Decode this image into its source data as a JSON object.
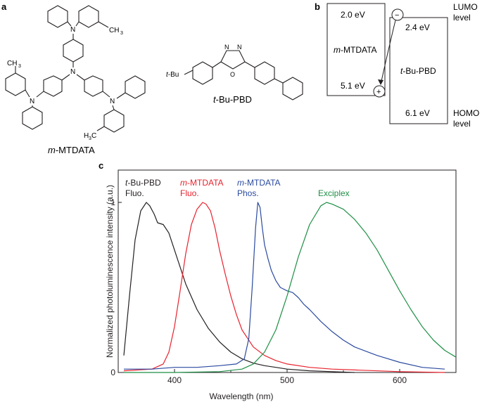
{
  "panel_a": {
    "label": "a",
    "mol1_name_ital": "m",
    "mol1_name_rest": "-MTDATA",
    "mol2_name_ital": "t",
    "mol2_name_rest": "-Bu-PBD",
    "atoms": {
      "n": "N",
      "o": "O",
      "ch3": "CH",
      "ch3_sub": "3",
      "h3c": "H",
      "h3c_sub": "3",
      "h3c_c": "C",
      "tbu": "-Bu",
      "tbu_t": "t"
    }
  },
  "panel_b": {
    "label": "b",
    "left_top": "2.0 eV",
    "left_name_ital": "m",
    "left_name_rest": "-MTDATA",
    "left_bottom": "5.1 eV",
    "right_top": "2.4 eV",
    "right_name_ital": "t",
    "right_name_rest": "-Bu-PBD",
    "right_bottom": "6.1 eV",
    "lumo_1": "LUMO",
    "lumo_2": "level",
    "homo_1": "HOMO",
    "homo_2": "level",
    "minus": "−",
    "plus": "+"
  },
  "panel_c": {
    "label": "c",
    "legend": {
      "s1_l1_ital": "t",
      "s1_l1_rest": "-Bu-PBD",
      "s1_l2": "Fluo.",
      "s2_l1_ital": "m",
      "s2_l1_rest": "-MTDATA",
      "s2_l2": "Fluo.",
      "s3_l1_ital": "m",
      "s3_l1_rest": "-MTDATA",
      "s3_l2": "Phos.",
      "s4": "Exciplex"
    }
  },
  "chart_data": {
    "type": "line",
    "xlabel": "Wavelength (nm)",
    "ylabel": "Normalized photoluminescence intensity (a.u.)",
    "xlim": [
      350,
      650
    ],
    "ylim": [
      0,
      1.2
    ],
    "xticks": [
      400,
      500,
      600
    ],
    "yticks": [
      0,
      1
    ],
    "series": [
      {
        "name": "t-Bu-PBD Fluo.",
        "color": "#231f20",
        "x": [
          355,
          360,
          365,
          370,
          375,
          378,
          382,
          385,
          390,
          395,
          400,
          410,
          420,
          430,
          440,
          450,
          460,
          470,
          480,
          490,
          500,
          520,
          540,
          560
        ],
        "y": [
          0.1,
          0.45,
          0.78,
          0.95,
          1.0,
          0.98,
          0.93,
          0.88,
          0.87,
          0.82,
          0.72,
          0.52,
          0.37,
          0.26,
          0.18,
          0.12,
          0.08,
          0.055,
          0.04,
          0.03,
          0.02,
          0.01,
          0.005,
          0.0
        ]
      },
      {
        "name": "m-MTDATA Fluo.",
        "color": "#e8222d",
        "x": [
          355,
          380,
          390,
          395,
          400,
          405,
          410,
          415,
          420,
          425,
          428,
          432,
          436,
          440,
          445,
          450,
          455,
          460,
          470,
          480,
          490,
          500,
          520,
          540,
          560,
          600,
          640
        ],
        "y": [
          0.01,
          0.02,
          0.05,
          0.12,
          0.27,
          0.48,
          0.7,
          0.87,
          0.96,
          1.0,
          0.99,
          0.95,
          0.85,
          0.72,
          0.58,
          0.45,
          0.34,
          0.25,
          0.15,
          0.1,
          0.07,
          0.05,
          0.03,
          0.02,
          0.015,
          0.005,
          0.0
        ]
      },
      {
        "name": "m-MTDATA Phos.",
        "color": "#2b4aa0",
        "x": [
          355,
          380,
          400,
          420,
          440,
          455,
          462,
          466,
          469,
          472,
          474,
          476,
          478,
          480,
          483,
          486,
          490,
          494,
          500,
          505,
          510,
          515,
          520,
          530,
          540,
          550,
          560,
          580,
          600,
          620,
          640
        ],
        "y": [
          0.02,
          0.02,
          0.03,
          0.03,
          0.04,
          0.05,
          0.08,
          0.2,
          0.5,
          0.85,
          1.0,
          0.97,
          0.85,
          0.75,
          0.67,
          0.6,
          0.54,
          0.5,
          0.48,
          0.47,
          0.44,
          0.4,
          0.37,
          0.3,
          0.24,
          0.19,
          0.15,
          0.1,
          0.06,
          0.03,
          0.02
        ]
      },
      {
        "name": "Exciplex",
        "color": "#1f8f46",
        "x": [
          355,
          400,
          440,
          460,
          470,
          480,
          490,
          500,
          510,
          520,
          530,
          535,
          540,
          550,
          560,
          570,
          580,
          590,
          600,
          610,
          620,
          630,
          640,
          650
        ],
        "y": [
          0.0,
          0.0,
          0.005,
          0.02,
          0.05,
          0.12,
          0.25,
          0.45,
          0.68,
          0.87,
          0.98,
          1.0,
          0.99,
          0.96,
          0.9,
          0.82,
          0.72,
          0.6,
          0.48,
          0.37,
          0.27,
          0.19,
          0.13,
          0.09
        ]
      }
    ]
  }
}
